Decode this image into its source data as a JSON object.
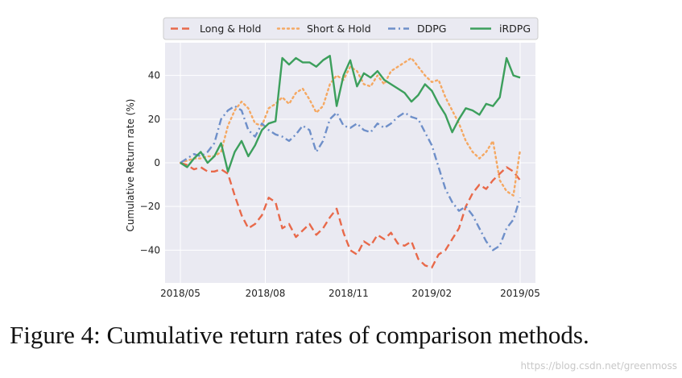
{
  "caption": "Figure 4: Cumulative return rates of comparison methods.",
  "watermark": "https://blog.csdn.net/greenmoss",
  "chart_data": {
    "type": "line",
    "title": "",
    "xlabel": "",
    "ylabel": "Cumulative Return rate (%)",
    "xlim": [
      0,
      100
    ],
    "ylim": [
      -55,
      55
    ],
    "grid": true,
    "legend_position": "top",
    "x_ticks": [
      {
        "x": 0,
        "label": "2018/05"
      },
      {
        "x": 25,
        "label": "2018/08"
      },
      {
        "x": 49.5,
        "label": "2018/11"
      },
      {
        "x": 74,
        "label": "2019/02"
      },
      {
        "x": 100,
        "label": "2019/05"
      }
    ],
    "y_ticks": [
      -40,
      -20,
      0,
      20,
      40
    ],
    "x": [
      0,
      2,
      4,
      6,
      8,
      10,
      12,
      14,
      16,
      18,
      20,
      22,
      24,
      26,
      28,
      30,
      32,
      34,
      36,
      38,
      40,
      42,
      44,
      46,
      48,
      50,
      52,
      54,
      56,
      58,
      60,
      62,
      64,
      66,
      68,
      70,
      72,
      74,
      76,
      78,
      80,
      82,
      84,
      86,
      88,
      90,
      92,
      94,
      96,
      98,
      100
    ],
    "series": [
      {
        "name": "Long & Hold",
        "color": "#e8694a",
        "dash": "dashed",
        "values": [
          0,
          -1,
          -3,
          -2,
          -4,
          -4,
          -3,
          -5,
          -15,
          -24,
          -30,
          -28,
          -24,
          -16,
          -18,
          -30,
          -28,
          -34,
          -31,
          -28,
          -33,
          -30,
          -25,
          -21,
          -32,
          -40,
          -42,
          -36,
          -38,
          -33,
          -35,
          -32,
          -37,
          -38,
          -36,
          -44,
          -47,
          -48,
          -42,
          -40,
          -35,
          -30,
          -20,
          -14,
          -10,
          -12,
          -8,
          -5,
          -2,
          -4,
          -8
        ]
      },
      {
        "name": "Short & Hold",
        "color": "#f5a862",
        "dash": "dotted",
        "values": [
          0,
          1,
          2,
          2,
          3,
          3,
          5,
          17,
          24,
          28,
          25,
          18,
          17,
          25,
          27,
          30,
          27,
          32,
          34,
          29,
          23,
          26,
          36,
          40,
          38,
          44,
          42,
          36,
          35,
          40,
          36,
          42,
          44,
          46,
          48,
          44,
          40,
          37,
          38,
          30,
          24,
          18,
          10,
          5,
          2,
          5,
          10,
          -8,
          -13,
          -15,
          6
        ]
      },
      {
        "name": "DDPG",
        "color": "#6e8fc9",
        "dash": "dashdot",
        "values": [
          0,
          2,
          4,
          3,
          5,
          9,
          20,
          24,
          26,
          24,
          15,
          12,
          18,
          15,
          13,
          12,
          10,
          13,
          17,
          15,
          5,
          10,
          20,
          23,
          17,
          16,
          18,
          15,
          14,
          18,
          16,
          18,
          21,
          23,
          21,
          20,
          14,
          8,
          -2,
          -12,
          -18,
          -22,
          -20,
          -24,
          -30,
          -36,
          -40,
          -38,
          -30,
          -26,
          -16
        ]
      },
      {
        "name": "iRDPG",
        "color": "#3c9f5c",
        "dash": "solid",
        "values": [
          0,
          -2,
          2,
          5,
          0,
          3,
          9,
          -4,
          5,
          10,
          3,
          8,
          15,
          18,
          19,
          48,
          45,
          48,
          46,
          46,
          44,
          47,
          49,
          26,
          40,
          47,
          35,
          41,
          39,
          42,
          38,
          36,
          34,
          32,
          28,
          31,
          36,
          33,
          27,
          22,
          14,
          20,
          25,
          24,
          22,
          27,
          26,
          30,
          48,
          40,
          39
        ]
      }
    ]
  }
}
